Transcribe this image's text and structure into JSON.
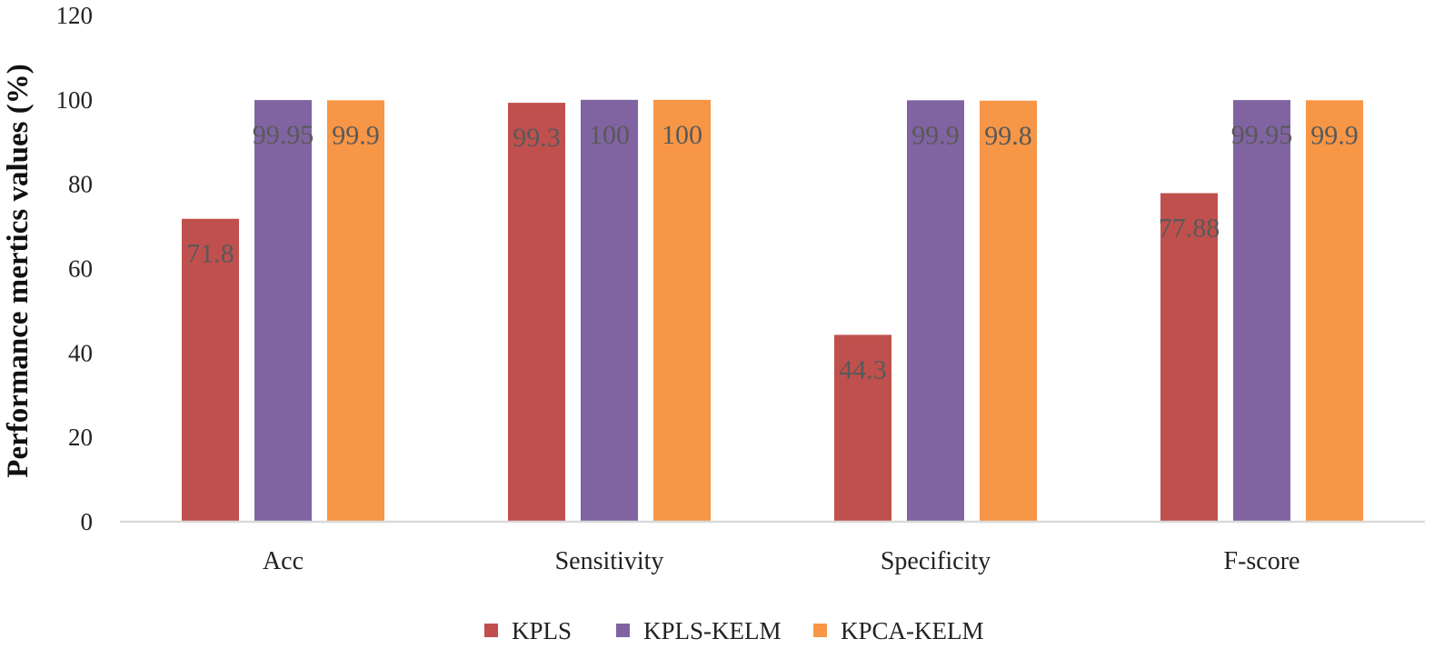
{
  "chart_data": {
    "type": "bar",
    "title": "",
    "xlabel": "",
    "ylabel": "Performance mertics values (%)",
    "ylim": [
      0,
      120
    ],
    "yticks": [
      0,
      20,
      40,
      60,
      80,
      100,
      120
    ],
    "grid": false,
    "legend_position": "bottom",
    "categories": [
      "Acc",
      "Sensitivity",
      "Specificity",
      "F-score"
    ],
    "series": [
      {
        "name": "KPLS",
        "color": "#c0504d",
        "values": [
          71.8,
          99.3,
          44.3,
          77.88
        ],
        "labels": [
          "71.8",
          "99.3",
          "44.3",
          "77.88"
        ]
      },
      {
        "name": "KPLS-KELM",
        "color": "#8064a2",
        "values": [
          99.95,
          100,
          99.9,
          99.95
        ],
        "labels": [
          "99.95",
          "100",
          "99.9",
          "99.95"
        ]
      },
      {
        "name": "KPCA-KELM",
        "color": "#f79646",
        "values": [
          99.9,
          100,
          99.8,
          99.9
        ],
        "labels": [
          "99.9",
          "100",
          "99.8",
          "99.9"
        ]
      }
    ]
  }
}
